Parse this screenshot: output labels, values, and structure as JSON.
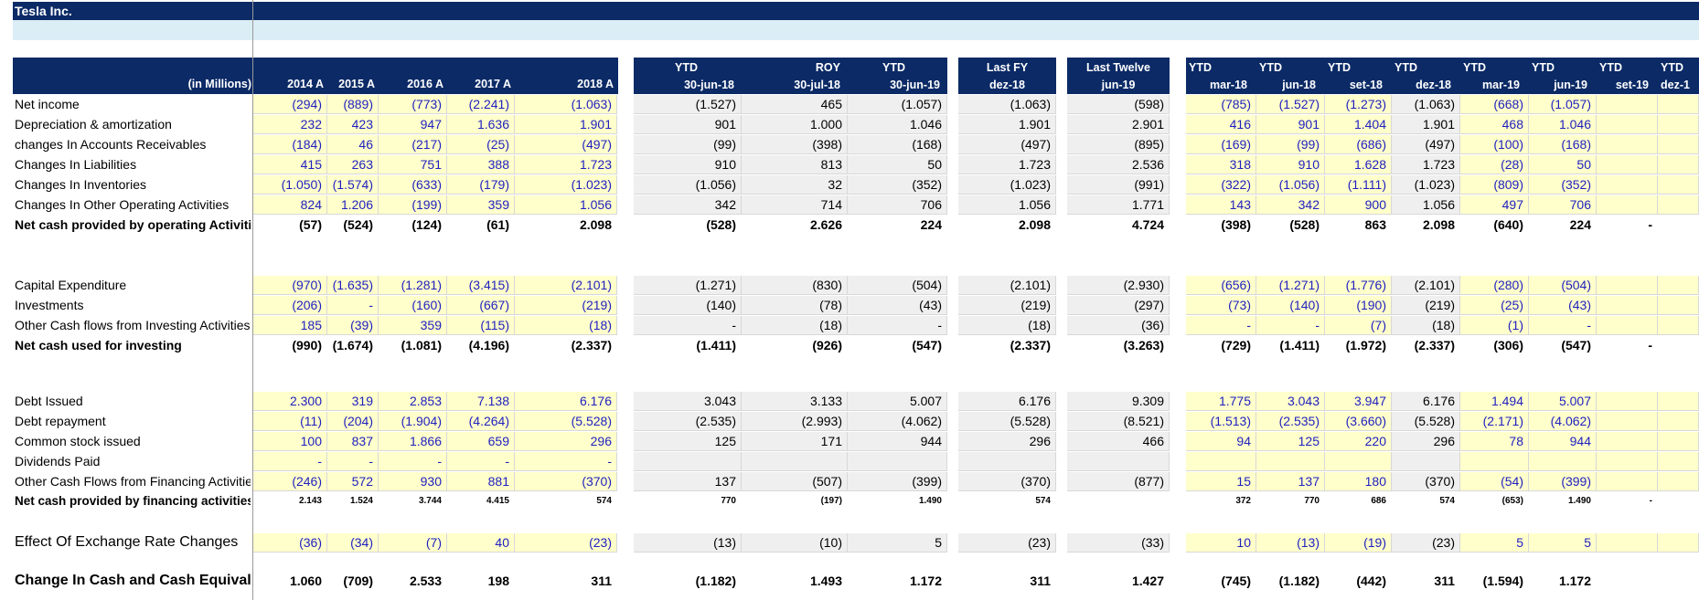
{
  "sheet": {
    "company": "Tesla Inc.",
    "units_label": "(in Millions)",
    "colors": {
      "header_bg": "#0b2a66",
      "sub_band": "#dbeef6",
      "input_fill": "#ffffcc",
      "calc_fill": "#efefef",
      "input_text": "#1f1fbf"
    },
    "groups": {
      "annual": {
        "headers": [
          "2014 A",
          "2015 A",
          "2016 A",
          "2017 A",
          "2018 A"
        ]
      },
      "ytd": {
        "top": [
          "YTD",
          "ROY",
          "YTD"
        ],
        "bottom": [
          "30-jun-18",
          "30-jul-18",
          "30-jun-19"
        ]
      },
      "lastfy": {
        "top": "Last FY",
        "bottom": "dez-18"
      },
      "ltm": {
        "top": "Last Twelve",
        "bottom": "jun-19"
      },
      "quarterly": {
        "top": [
          "YTD",
          "YTD",
          "YTD",
          "YTD",
          "YTD",
          "YTD",
          "YTD",
          "YTD"
        ],
        "bottom": [
          "mar-18",
          "jun-18",
          "set-18",
          "dez-18",
          "mar-19",
          "jun-19",
          "set-19",
          "dez-1"
        ]
      }
    },
    "rows": [
      {
        "label": "Net income",
        "style": "n",
        "annual": [
          "(294)",
          "(889)",
          "(773)",
          "(2.241)",
          "(1.063)"
        ],
        "ytd": [
          "(1.527)",
          "465",
          "(1.057)"
        ],
        "lastfy": "(1.063)",
        "ltm": "(598)",
        "q": [
          "(785)",
          "(1.527)",
          "(1.273)",
          "(1.063)",
          "(668)",
          "(1.057)",
          "",
          ""
        ]
      },
      {
        "label": "Depreciation & amortization",
        "style": "n",
        "annual": [
          "232",
          "423",
          "947",
          "1.636",
          "1.901"
        ],
        "ytd": [
          "901",
          "1.000",
          "1.046"
        ],
        "lastfy": "1.901",
        "ltm": "2.901",
        "q": [
          "416",
          "901",
          "1.404",
          "1.901",
          "468",
          "1.046",
          "",
          ""
        ]
      },
      {
        "label": "changes In Accounts Receivables",
        "style": "n",
        "annual": [
          "(184)",
          "46",
          "(217)",
          "(25)",
          "(497)"
        ],
        "ytd": [
          "(99)",
          "(398)",
          "(168)"
        ],
        "lastfy": "(497)",
        "ltm": "(895)",
        "q": [
          "(169)",
          "(99)",
          "(686)",
          "(497)",
          "(100)",
          "(168)",
          "",
          ""
        ]
      },
      {
        "label": "Changes In Liabilities",
        "style": "n",
        "annual": [
          "415",
          "263",
          "751",
          "388",
          "1.723"
        ],
        "ytd": [
          "910",
          "813",
          "50"
        ],
        "lastfy": "1.723",
        "ltm": "2.536",
        "q": [
          "318",
          "910",
          "1.628",
          "1.723",
          "(28)",
          "50",
          "",
          ""
        ]
      },
      {
        "label": "Changes In Inventories",
        "style": "n",
        "annual": [
          "(1.050)",
          "(1.574)",
          "(633)",
          "(179)",
          "(1.023)"
        ],
        "ytd": [
          "(1.056)",
          "32",
          "(352)"
        ],
        "lastfy": "(1.023)",
        "ltm": "(991)",
        "q": [
          "(322)",
          "(1.056)",
          "(1.111)",
          "(1.023)",
          "(809)",
          "(352)",
          "",
          ""
        ]
      },
      {
        "label": "Changes In Other Operating Activities",
        "style": "n",
        "annual": [
          "824",
          "1.206",
          "(199)",
          "359",
          "1.056"
        ],
        "ytd": [
          "342",
          "714",
          "706"
        ],
        "lastfy": "1.056",
        "ltm": "1.771",
        "q": [
          "143",
          "342",
          "900",
          "1.056",
          "497",
          "706",
          "",
          ""
        ]
      },
      {
        "label": "Net cash provided by operating Activities",
        "style": "b",
        "annual": [
          "(57)",
          "(524)",
          "(124)",
          "(61)",
          "2.098"
        ],
        "ytd": [
          "(528)",
          "2.626",
          "224"
        ],
        "lastfy": "2.098",
        "ltm": "4.724",
        "q": [
          "(398)",
          "(528)",
          "863",
          "2.098",
          "(640)",
          "224",
          "-",
          ""
        ]
      },
      {
        "label": "Capital Expenditure",
        "style": "n",
        "annual": [
          "(970)",
          "(1.635)",
          "(1.281)",
          "(3.415)",
          "(2.101)"
        ],
        "ytd": [
          "(1.271)",
          "(830)",
          "(504)"
        ],
        "lastfy": "(2.101)",
        "ltm": "(2.930)",
        "q": [
          "(656)",
          "(1.271)",
          "(1.776)",
          "(2.101)",
          "(280)",
          "(504)",
          "",
          ""
        ]
      },
      {
        "label": "Investments",
        "style": "n",
        "annual": [
          "(206)",
          "-",
          "(160)",
          "(667)",
          "(219)"
        ],
        "ytd": [
          "(140)",
          "(78)",
          "(43)"
        ],
        "lastfy": "(219)",
        "ltm": "(297)",
        "q": [
          "(73)",
          "(140)",
          "(190)",
          "(219)",
          "(25)",
          "(43)",
          "",
          ""
        ]
      },
      {
        "label": "Other Cash flows from Investing Activities",
        "style": "n",
        "annual": [
          "185",
          "(39)",
          "359",
          "(115)",
          "(18)"
        ],
        "ytd": [
          "-",
          "(18)",
          "-"
        ],
        "lastfy": "(18)",
        "ltm": "(36)",
        "q": [
          "-",
          "-",
          "(7)",
          "(18)",
          "(1)",
          "-",
          "",
          ""
        ]
      },
      {
        "label": "Net cash used for investing",
        "style": "b",
        "annual": [
          "(990)",
          "(1.674)",
          "(1.081)",
          "(4.196)",
          "(2.337)"
        ],
        "ytd": [
          "(1.411)",
          "(926)",
          "(547)"
        ],
        "lastfy": "(2.337)",
        "ltm": "(3.263)",
        "q": [
          "(729)",
          "(1.411)",
          "(1.972)",
          "(2.337)",
          "(306)",
          "(547)",
          "-",
          ""
        ]
      },
      {
        "label": "Debt Issued",
        "style": "n",
        "annual": [
          "2.300",
          "319",
          "2.853",
          "7.138",
          "6.176"
        ],
        "ytd": [
          "3.043",
          "3.133",
          "5.007"
        ],
        "lastfy": "6.176",
        "ltm": "9.309",
        "q": [
          "1.775",
          "3.043",
          "3.947",
          "6.176",
          "1.494",
          "5.007",
          "",
          ""
        ]
      },
      {
        "label": "Debt repayment",
        "style": "n",
        "annual": [
          "(11)",
          "(204)",
          "(1.904)",
          "(4.264)",
          "(5.528)"
        ],
        "ytd": [
          "(2.535)",
          "(2.993)",
          "(4.062)"
        ],
        "lastfy": "(5.528)",
        "ltm": "(8.521)",
        "q": [
          "(1.513)",
          "(2.535)",
          "(3.660)",
          "(5.528)",
          "(2.171)",
          "(4.062)",
          "",
          ""
        ]
      },
      {
        "label": "Common stock issued",
        "style": "n",
        "annual": [
          "100",
          "837",
          "1.866",
          "659",
          "296"
        ],
        "ytd": [
          "125",
          "171",
          "944"
        ],
        "lastfy": "296",
        "ltm": "466",
        "q": [
          "94",
          "125",
          "220",
          "296",
          "78",
          "944",
          "",
          ""
        ]
      },
      {
        "label": "Dividends Paid",
        "style": "n",
        "annual": [
          "-",
          "-",
          "-",
          "-",
          "-"
        ],
        "ytd": [
          "",
          "",
          ""
        ],
        "lastfy": "",
        "ltm": "",
        "q": [
          "",
          "",
          "",
          "",
          "",
          "",
          "",
          ""
        ]
      },
      {
        "label": "Other Cash Flows from Financing Activities",
        "style": "n",
        "annual": [
          "(246)",
          "572",
          "930",
          "881",
          "(370)"
        ],
        "ytd": [
          "137",
          "(507)",
          "(399)"
        ],
        "lastfy": "(370)",
        "ltm": "(877)",
        "q": [
          "15",
          "137",
          "180",
          "(370)",
          "(54)",
          "(399)",
          "",
          ""
        ]
      },
      {
        "label": "Net cash provided by financing activities",
        "style": "s",
        "annual": [
          "2.143",
          "1.524",
          "3.744",
          "4.415",
          "574"
        ],
        "ytd": [
          "770",
          "(197)",
          "1.490"
        ],
        "lastfy": "574",
        "ltm": "",
        "q": [
          "372",
          "770",
          "686",
          "574",
          "(653)",
          "1.490",
          "-",
          ""
        ]
      },
      {
        "label": "Effect Of Exchange Rate Changes",
        "style": "x",
        "annual": [
          "(36)",
          "(34)",
          "(7)",
          "40",
          "(23)"
        ],
        "ytd": [
          "(13)",
          "(10)",
          "5"
        ],
        "lastfy": "(23)",
        "ltm": "(33)",
        "q": [
          "10",
          "(13)",
          "(19)",
          "(23)",
          "5",
          "5",
          "",
          ""
        ]
      },
      {
        "label": "Change In Cash and Cash Equivalents",
        "style": "t",
        "annual": [
          "1.060",
          "(709)",
          "2.533",
          "198",
          "311"
        ],
        "ytd": [
          "(1.182)",
          "1.493",
          "1.172"
        ],
        "lastfy": "311",
        "ltm": "1.427",
        "q": [
          "(745)",
          "(1.182)",
          "(442)",
          "311",
          "(1.594)",
          "1.172",
          "",
          ""
        ]
      }
    ]
  }
}
